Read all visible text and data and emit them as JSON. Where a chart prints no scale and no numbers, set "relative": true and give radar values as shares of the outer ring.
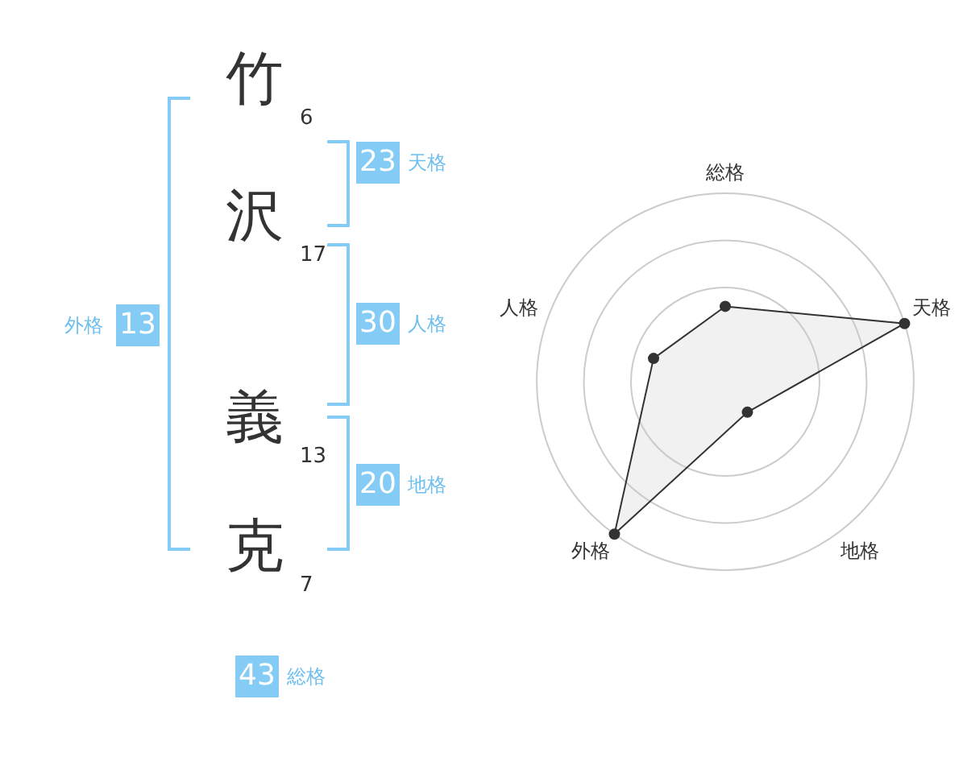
{
  "chart_data": [
    {
      "type": "other",
      "categories": [
        "竹",
        "沢",
        "義",
        "克"
      ],
      "annotations": [
        "6",
        "17",
        "13",
        "7",
        "23",
        "天格",
        "30",
        "人格",
        "20",
        "地格",
        "13",
        "外格",
        "43",
        "総格"
      ]
    },
    {
      "type": "radar",
      "relative": true,
      "categories": [
        "総格",
        "天格",
        "地格",
        "外格",
        "人格"
      ],
      "series": [
        {
          "color": "#333333",
          "values": [
            0.4,
            1,
            0.2,
            1,
            0.4
          ]
        }
      ]
    }
  ]
}
